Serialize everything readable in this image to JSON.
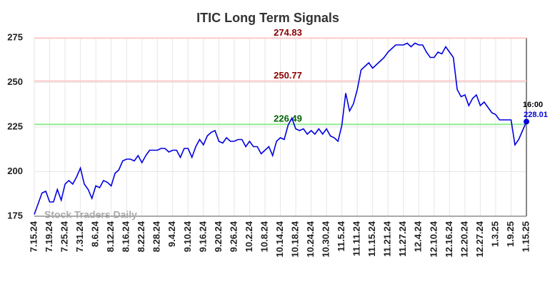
{
  "chart_data": {
    "type": "line",
    "title": "ITIC Long Term Signals",
    "watermark": "Stock Traders Daily",
    "categories": [
      "7.15.24",
      null,
      null,
      null,
      "7.19.24",
      null,
      null,
      null,
      "7.25.24",
      null,
      null,
      null,
      "7.31.24",
      null,
      null,
      null,
      "8.6.24",
      null,
      null,
      null,
      "8.12.24",
      null,
      null,
      null,
      "8.16.24",
      null,
      null,
      null,
      "8.22.24",
      null,
      null,
      null,
      "8.28.24",
      null,
      null,
      null,
      "9.4.24",
      null,
      null,
      null,
      "9.10.24",
      null,
      null,
      null,
      "9.16.24",
      null,
      null,
      null,
      "9.20.24",
      null,
      null,
      null,
      "9.26.24",
      null,
      null,
      null,
      "10.2.24",
      null,
      null,
      null,
      "10.8.24",
      null,
      null,
      null,
      "10.14.24",
      null,
      null,
      null,
      "10.18.24",
      null,
      null,
      null,
      "10.24.24",
      null,
      null,
      null,
      "10.30.24",
      null,
      null,
      null,
      "11.5.24",
      null,
      null,
      null,
      "11.11.24",
      null,
      null,
      null,
      "11.15.24",
      null,
      null,
      null,
      "11.21.24",
      null,
      null,
      null,
      "11.27.24",
      null,
      null,
      null,
      "12.4.24",
      null,
      null,
      null,
      "12.10.24",
      null,
      null,
      null,
      "12.16.24",
      null,
      null,
      null,
      "12.20.24",
      null,
      null,
      null,
      "12.27.24",
      null,
      null,
      null,
      "1.3.25",
      null,
      null,
      null,
      "1.9.25",
      null,
      null,
      null,
      "1.15.25"
    ],
    "series": [
      {
        "name": "ITIC",
        "color": "#0000e0",
        "values": [
          176,
          182,
          188,
          189,
          183,
          183,
          190,
          184,
          193,
          195,
          193,
          197,
          202,
          193,
          190,
          185,
          192,
          191,
          195,
          194,
          192,
          199,
          201,
          206,
          207,
          207,
          206,
          209,
          205,
          209,
          212,
          212,
          212,
          213,
          213,
          211,
          212,
          212,
          208,
          213,
          213,
          208,
          214,
          218,
          215,
          220,
          222,
          223,
          217,
          216,
          219,
          217,
          217,
          218,
          218,
          214,
          217,
          214,
          214,
          210,
          212,
          214,
          209,
          217,
          219,
          218,
          226,
          230,
          224,
          223,
          224,
          221,
          223,
          221,
          224,
          221,
          224,
          220,
          219,
          217,
          226,
          244,
          234,
          238,
          246,
          257,
          259,
          261,
          258,
          260,
          262,
          264,
          267,
          269,
          271,
          271,
          271,
          272,
          270,
          272,
          271,
          271,
          267,
          264,
          264,
          267,
          266,
          270,
          267,
          264,
          246,
          242,
          243,
          237,
          241,
          243,
          237,
          239,
          236,
          233,
          232,
          229,
          229,
          229,
          229,
          215,
          218,
          223,
          228.01
        ]
      }
    ],
    "ylim": [
      175,
      275
    ],
    "yticks": [
      175,
      200,
      225,
      250,
      275
    ],
    "grid": true,
    "hlines": [
      {
        "value": 274.83,
        "color": "#ffc8c8",
        "label_color": "#8b0000"
      },
      {
        "value": 250.77,
        "color": "#ffc8c8",
        "label_color": "#8b0000"
      },
      {
        "value": 226.49,
        "color": "#90ee90",
        "label_color": "#006400"
      }
    ],
    "last_time": "16:00"
  }
}
